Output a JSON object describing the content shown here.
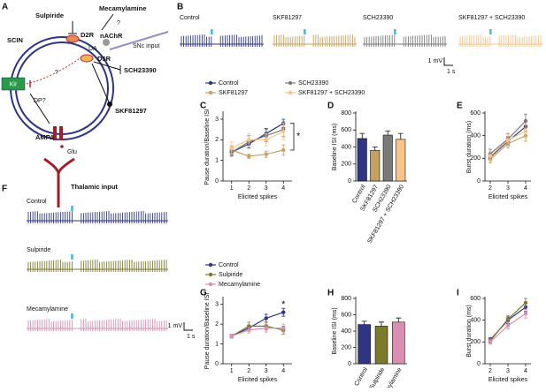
{
  "panel_labels": [
    "A",
    "B",
    "C",
    "D",
    "E",
    "F",
    "G",
    "H",
    "I"
  ],
  "diagram": {
    "cell": "SCIN",
    "sulpiride": "Sulpiride",
    "mecamylamine": "Mecamylamine",
    "nachr": "nAChR",
    "q1": "?",
    "d2r": "D2R",
    "da": "DA",
    "snc": "SNc input",
    "d5r": "D5R",
    "sch": "SCH23390",
    "skf": "SKF81297",
    "channel": "Kir",
    "q2": "?",
    "dp": "DP?",
    "ampa": "AMPA",
    "glu": "Glu",
    "thalamic": "Thalamic input"
  },
  "stimulus_color": "#3fb8e0",
  "traces_b": [
    {
      "title": "Control",
      "color": "#2e3585"
    },
    {
      "title": "SKF81297",
      "color": "#c8a060"
    },
    {
      "title": "SCH23390",
      "color": "#7a7a7a"
    },
    {
      "title": "SKF81297 + SCH23390",
      "color": "#f7c48a"
    }
  ],
  "traces_f": [
    {
      "title": "Control",
      "color": "#2e3585"
    },
    {
      "title": "Sulpiride",
      "color": "#7d7a2c"
    },
    {
      "title": "Mecamylamine",
      "color": "#d98fb0"
    }
  ],
  "scale_b": {
    "v": "1 mV",
    "t": "1 s"
  },
  "scale_f": {
    "v": "1 mV",
    "t": "1 s"
  },
  "chart_data": [
    {
      "type": "line",
      "xlabel": "Elicited spikes",
      "ylabel": "Pause duration/Baseline ISI",
      "x": [
        1,
        2,
        3,
        4
      ],
      "xlim": [
        0.5,
        4.5
      ],
      "xticks": [
        1,
        2,
        3,
        4
      ],
      "ylim": [
        0,
        3.3
      ],
      "yticks": [
        0,
        1,
        2,
        3
      ],
      "legend": true,
      "annotation": "*",
      "series": [
        {
          "name": "Control",
          "color": "#2e3585",
          "values": [
            1.4,
            1.8,
            2.3,
            2.8
          ],
          "errors": [
            0.15,
            0.2,
            0.25,
            0.2
          ]
        },
        {
          "name": "SKF81297",
          "color": "#c8a060",
          "values": [
            1.5,
            1.2,
            1.3,
            1.5
          ],
          "errors": [
            0.2,
            0.1,
            0.15,
            0.25
          ]
        },
        {
          "name": "SCH23390",
          "color": "#7a7a7a",
          "values": [
            1.4,
            1.9,
            2.2,
            2.5
          ],
          "errors": [
            0.2,
            0.3,
            0.3,
            0.35
          ]
        },
        {
          "name": "SKF81297 + SCH23390",
          "color": "#f7c48a",
          "values": [
            1.6,
            2.0,
            2.0,
            2.4
          ],
          "errors": [
            0.3,
            0.3,
            0.3,
            0.4
          ]
        }
      ]
    },
    {
      "type": "bar",
      "ylabel": "Baseline ISI (ms)",
      "categories": [
        "Control",
        "SKF81297",
        "SCH23390",
        "SKF81297 + SCH23390"
      ],
      "values": [
        500,
        360,
        540,
        490
      ],
      "errors": [
        60,
        40,
        50,
        70
      ],
      "colors": [
        "#2e3585",
        "#c8a060",
        "#7a7a7a",
        "#f7c48a"
      ],
      "ylim": [
        0,
        800
      ],
      "yticks": [
        0,
        200,
        400,
        600,
        800
      ]
    },
    {
      "type": "line",
      "xlabel": "Elicited spikes",
      "ylabel": "Burst duration (ms)",
      "x": [
        2,
        3,
        4
      ],
      "xlim": [
        1.7,
        4.3
      ],
      "xticks": [
        2,
        3,
        4
      ],
      "ylim": [
        0,
        600
      ],
      "yticks": [
        0,
        200,
        400,
        600
      ],
      "series": [
        {
          "color": "#2e3585",
          "values": [
            210,
            350,
            480
          ],
          "errors": [
            30,
            40,
            50
          ]
        },
        {
          "color": "#c8a060",
          "values": [
            190,
            330,
            400
          ],
          "errors": [
            30,
            40,
            50
          ]
        },
        {
          "color": "#7a7a7a",
          "values": [
            240,
            370,
            530
          ],
          "errors": [
            40,
            50,
            60
          ]
        },
        {
          "color": "#f7c48a",
          "values": [
            220,
            360,
            440
          ],
          "errors": [
            40,
            50,
            60
          ]
        }
      ]
    },
    {
      "type": "line",
      "xlabel": "Elicited spikes",
      "ylabel": "Pause duration/Baseline ISI",
      "x": [
        1,
        2,
        3,
        4
      ],
      "xlim": [
        0.5,
        4.5
      ],
      "xticks": [
        1,
        2,
        3,
        4
      ],
      "ylim": [
        0,
        3.3
      ],
      "yticks": [
        0,
        1,
        2,
        3
      ],
      "legend": true,
      "annotation": "*",
      "series": [
        {
          "name": "Control",
          "color": "#2e3585",
          "values": [
            1.4,
            1.8,
            2.3,
            2.6
          ],
          "errors": [
            0.1,
            0.15,
            0.2,
            0.2
          ]
        },
        {
          "name": "Sulpiride",
          "color": "#7d7a2c",
          "values": [
            1.4,
            1.9,
            1.9,
            1.7
          ],
          "errors": [
            0.1,
            0.2,
            0.2,
            0.2
          ]
        },
        {
          "name": "Mecamylamine",
          "color": "#d98fb0",
          "values": [
            1.4,
            1.7,
            1.8,
            1.8
          ],
          "errors": [
            0.1,
            0.15,
            0.2,
            0.2
          ]
        }
      ]
    },
    {
      "type": "bar",
      "ylabel": "Baseline ISI (ms)",
      "categories": [
        "Control",
        "Sulpiride",
        "Mecamylamine"
      ],
      "values": [
        480,
        460,
        510
      ],
      "errors": [
        40,
        50,
        50
      ],
      "colors": [
        "#2e3585",
        "#7d7a2c",
        "#d98fb0"
      ],
      "ylim": [
        0,
        800
      ],
      "yticks": [
        0,
        200,
        400,
        600,
        800
      ]
    },
    {
      "type": "line",
      "xlabel": "Elicited spikes",
      "ylabel": "Burst duration (ms)",
      "x": [
        2,
        3,
        4
      ],
      "xlim": [
        1.7,
        4.3
      ],
      "xticks": [
        2,
        3,
        4
      ],
      "ylim": [
        0,
        600
      ],
      "yticks": [
        0,
        200,
        400,
        600
      ],
      "series": [
        {
          "color": "#2e3585",
          "values": [
            220,
            400,
            520
          ],
          "errors": [
            20,
            30,
            40
          ]
        },
        {
          "color": "#7d7a2c",
          "values": [
            210,
            410,
            560
          ],
          "errors": [
            20,
            30,
            40
          ]
        },
        {
          "color": "#d98fb0",
          "values": [
            200,
            350,
            460
          ],
          "errors": [
            20,
            30,
            40
          ]
        }
      ]
    }
  ]
}
